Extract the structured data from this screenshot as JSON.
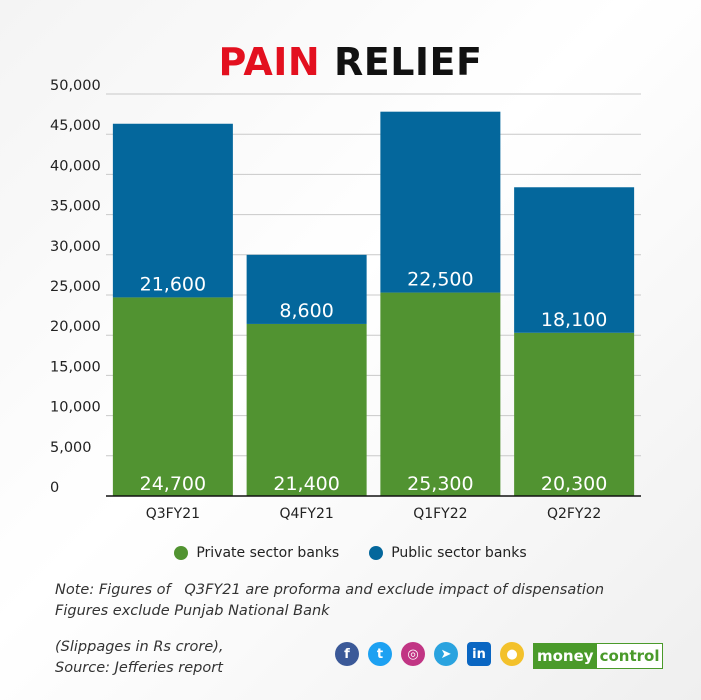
{
  "title_part1": "PAIN",
  "title_part2": "RELIEF",
  "chart_data": {
    "type": "bar",
    "stacked": true,
    "categories": [
      "Q3FY21",
      "Q4FY21",
      "Q1FY22",
      "Q2FY22"
    ],
    "series": [
      {
        "name": "Private sector banks",
        "values": [
          24700,
          21400,
          25300,
          20300
        ],
        "color": "#519331"
      },
      {
        "name": "Public sector banks",
        "values": [
          21600,
          8600,
          22500,
          18100
        ],
        "color": "#04679c"
      }
    ],
    "value_labels": {
      "Private sector banks": [
        "24,700",
        "21,400",
        "25,300",
        "20,300"
      ],
      "Public sector banks": [
        "21,600",
        "8,600",
        "22,500",
        "18,100"
      ]
    },
    "ylim": [
      0,
      50000
    ],
    "yticks": [
      0,
      5000,
      10000,
      15000,
      20000,
      25000,
      30000,
      35000,
      40000,
      45000,
      50000
    ],
    "ytick_labels": [
      "0",
      "5,000",
      "10,000",
      "15,000",
      "20,000",
      "25,000",
      "30,000",
      "35,000",
      "40,000",
      "45,000",
      "50,000"
    ],
    "grid": true,
    "legend_position": "bottom",
    "xlabel": "",
    "ylabel": ""
  },
  "notes": {
    "line1": "Note: Figures of   Q3FY21 are proforma and exclude impact of dispensation",
    "line2": "Figures exclude Punjab National Bank",
    "line3": "(Slippages in Rs crore),",
    "line4": "Source: Jefferies report"
  },
  "social": [
    {
      "name": "facebook-icon",
      "glyph": "f",
      "color": "#3b5998"
    },
    {
      "name": "twitter-icon",
      "glyph": "t",
      "color": "#1da1f2"
    },
    {
      "name": "instagram-icon",
      "glyph": "◎",
      "color": "#c13584"
    },
    {
      "name": "telegram-icon",
      "glyph": "➤",
      "color": "#2aa3df"
    },
    {
      "name": "linkedin-icon",
      "glyph": "in",
      "color": "#0a66c2"
    },
    {
      "name": "koo-icon",
      "glyph": "●",
      "color": "#f3c12b"
    }
  ],
  "brand": {
    "part1": "money",
    "part2": "control",
    "color": "#4a9a2a"
  }
}
